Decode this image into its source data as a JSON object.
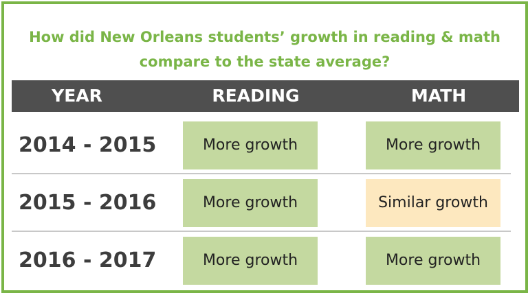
{
  "title": {
    "line1": "How did New Orleans students’ growth in reading & math",
    "line2": "compare to the state average?"
  },
  "headers": {
    "year": "YEAR",
    "reading": "READING",
    "math": "MATH"
  },
  "colors": {
    "accent_green": "#7ab547",
    "header_bg": "#4f4f4f",
    "more_growth_bg": "#c4d9a0",
    "similar_growth_bg": "#fde8bf"
  },
  "rows": [
    {
      "year": "2014 - 2015",
      "reading": "More growth",
      "math": "More growth"
    },
    {
      "year": "2015 - 2016",
      "reading": "More growth",
      "math": "Similar growth"
    },
    {
      "year": "2016 - 2017",
      "reading": "More growth",
      "math": "More growth"
    }
  ]
}
